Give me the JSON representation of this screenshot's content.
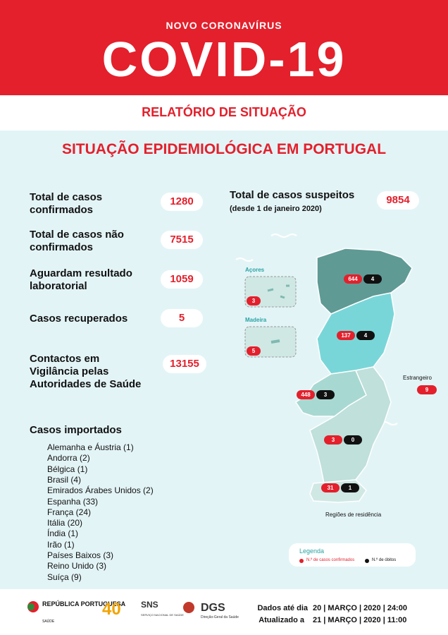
{
  "header": {
    "kicker": "NOVO CORONAVÍRUS",
    "title": "COVID-19",
    "subtitle": "RELATÓRIO DE SITUAÇÃO"
  },
  "section_title": "SITUAÇÃO EPIDEMIOLÓGICA EM PORTUGAL",
  "stats": [
    {
      "label": "Total de casos confirmados",
      "value": 1280
    },
    {
      "label": "Total de casos não confirmados",
      "value": 7515
    },
    {
      "label": "Aguardam resultado laboratorial",
      "value": 1059
    },
    {
      "label": "Casos recuperados",
      "value": 5
    },
    {
      "label": "Contactos em Vigilância pelas Autoridades de Saúde",
      "value": 13155
    }
  ],
  "suspected": {
    "label": "Total de casos suspeitos",
    "note": "(desde 1 de janeiro 2020)",
    "value": 9854
  },
  "imported": {
    "title": "Casos importados",
    "items": [
      "Alemanha e Áustria (1)",
      "Andorra (2)",
      "Bélgica (1)",
      "Brasil (4)",
      "Emirados Árabes Unidos (2)",
      "Espanha (33)",
      "França (24)",
      "Itália (20)",
      "Índia (1)",
      "Irão (1)",
      "Países Baixos (3)",
      "Reino Unido (3)",
      "Suíça (9)"
    ]
  },
  "map": {
    "regions": [
      {
        "confirmed": 644,
        "deaths": 4
      },
      {
        "confirmed": 137,
        "deaths": 4
      },
      {
        "confirmed": 448,
        "deaths": 3
      },
      {
        "confirmed": 3,
        "deaths": 0
      },
      {
        "confirmed": 31,
        "deaths": 1
      }
    ],
    "azores": {
      "label": "Açores",
      "confirmed": 3
    },
    "madeira": {
      "label": "Madeira",
      "confirmed": 5
    },
    "abroad": {
      "label": "Estrangeiro",
      "confirmed": 9
    },
    "caption": "Regiões de residência",
    "legend": {
      "title": "Legenda",
      "confirmed": "N.º de casos confirmados",
      "deaths": "N.º de óbitos"
    }
  },
  "footer": {
    "republic": "REPÚBLICA PORTUGUESA",
    "health": "SAÚDE",
    "anniversary": "40",
    "sns": "SNS",
    "sns_name": "SERVIÇO NACIONAL DE SAÚDE",
    "dgs": "DGS",
    "dgs_name": "Direção-Geral da Saúde",
    "data_label": "Dados até dia",
    "data_date": "20 | MARÇO | 2020 | 24:00",
    "updated_label": "Atualizado a",
    "updated_date": "21 | MARÇO | 2020 | 11:00"
  }
}
